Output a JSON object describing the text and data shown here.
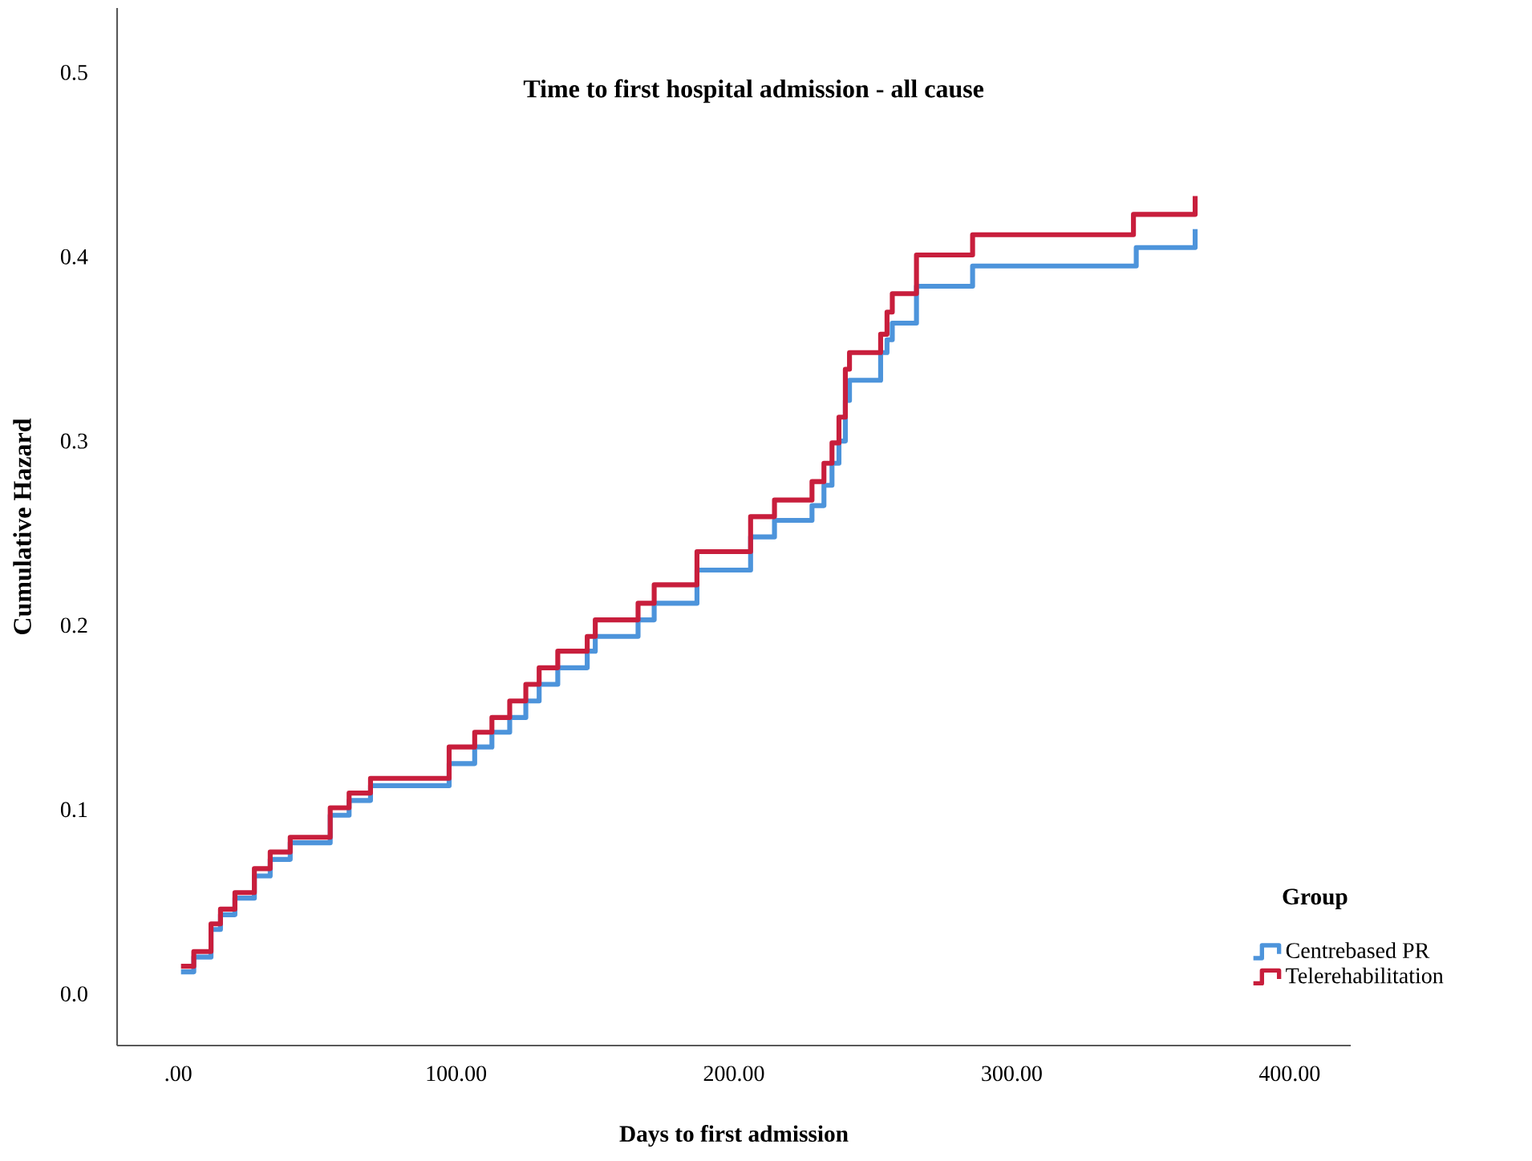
{
  "chart_data": {
    "type": "step",
    "title": "Time to first hospital admission - all cause",
    "xlabel": "Days to first admission",
    "ylabel": "Cumulative Hazard",
    "legend_title": "Group",
    "legend": "bottom right",
    "xlim": [
      -22,
      422
    ],
    "ylim": [
      -0.028,
      0.535
    ],
    "xticks": [
      {
        "value": 0,
        "label": ".00"
      },
      {
        "value": 100,
        "label": "100.00"
      },
      {
        "value": 200,
        "label": "200.00"
      },
      {
        "value": 300,
        "label": "300.00"
      },
      {
        "value": 400,
        "label": "400.00"
      }
    ],
    "yticks": [
      {
        "value": 0,
        "label": "0.0"
      },
      {
        "value": 0.1,
        "label": "0.1"
      },
      {
        "value": 0.2,
        "label": "0.2"
      },
      {
        "value": 0.3,
        "label": "0.3"
      },
      {
        "value": 0.4,
        "label": "0.4"
      },
      {
        "value": 0.5,
        "label": "0.5"
      }
    ],
    "series": [
      {
        "name": "Centrebased PR",
        "color": "#4d94db",
        "x": [
          1,
          5.6,
          11.8,
          15.2,
          20.4,
          27.4,
          33.1,
          40.3,
          54.7,
          61.5,
          69.2,
          97.5,
          106.7,
          112.9,
          119.3,
          125.1,
          129.9,
          136.6,
          147.2,
          150.1,
          165.5,
          171.3,
          186.7,
          206,
          214.6,
          228.1,
          232.4,
          235.3,
          237.8,
          240.1,
          241.6,
          252.8,
          255.1,
          257,
          265.7,
          285.9,
          344.8,
          366
        ],
        "values": [
          0.012,
          0.02,
          0.035,
          0.043,
          0.052,
          0.064,
          0.073,
          0.082,
          0.097,
          0.105,
          0.113,
          0.125,
          0.134,
          0.142,
          0.15,
          0.159,
          0.168,
          0.177,
          0.186,
          0.194,
          0.203,
          0.212,
          0.23,
          0.248,
          0.257,
          0.265,
          0.276,
          0.288,
          0.3,
          0.322,
          0.333,
          0.348,
          0.355,
          0.364,
          0.384,
          0.395,
          0.405,
          0.415
        ]
      },
      {
        "name": "Telerehabilitation",
        "color": "#c81e3c",
        "x": [
          1,
          5.6,
          11.8,
          15.2,
          20.4,
          27.4,
          33.1,
          40.3,
          54.7,
          61.5,
          69.2,
          97.5,
          106.7,
          112.9,
          119.3,
          125.1,
          129.9,
          136.6,
          147.2,
          150.1,
          165.5,
          171.3,
          186.7,
          206,
          214.6,
          228.1,
          232.4,
          235.3,
          237.8,
          240.1,
          241.6,
          252.8,
          255.1,
          257,
          265.7,
          285.9,
          343.8,
          366
        ],
        "values": [
          0.015,
          0.023,
          0.038,
          0.046,
          0.055,
          0.068,
          0.077,
          0.085,
          0.101,
          0.109,
          0.117,
          0.134,
          0.142,
          0.15,
          0.159,
          0.168,
          0.177,
          0.186,
          0.194,
          0.203,
          0.212,
          0.222,
          0.24,
          0.259,
          0.268,
          0.278,
          0.288,
          0.299,
          0.313,
          0.339,
          0.348,
          0.358,
          0.37,
          0.38,
          0.401,
          0.412,
          0.423,
          0.433
        ]
      }
    ]
  }
}
